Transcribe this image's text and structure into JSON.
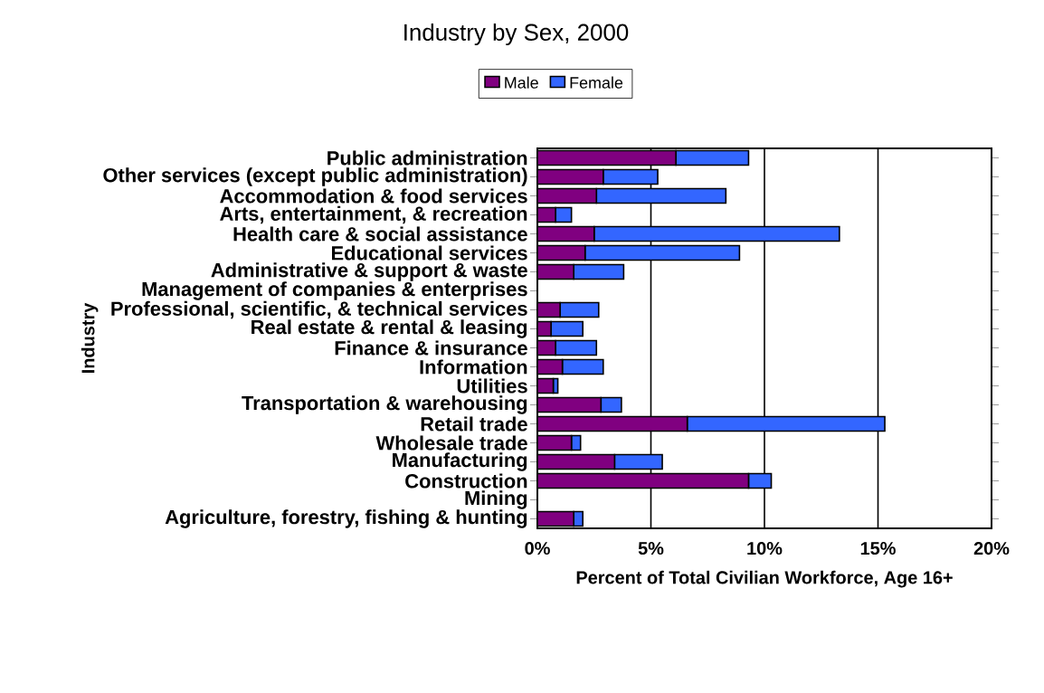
{
  "chart_data": {
    "type": "bar",
    "orientation": "horizontal",
    "stacked": true,
    "title": "Industry by Sex, 2000",
    "xlabel": "Percent of Total Civilian Workforce, Age 16+",
    "ylabel": "Industry",
    "categories": [
      "Public administration",
      "Other services (except public administration)",
      "Accommodation & food services",
      "Arts, entertainment, & recreation",
      "Health care & social assistance",
      "Educational services",
      "Administrative & support & waste",
      "Management of companies & enterprises",
      "Professional, scientific, & technical services",
      "Real estate & rental & leasing",
      "Finance & insurance",
      "Information",
      "Utilities",
      "Transportation & warehousing",
      "Retail trade",
      "Wholesale trade",
      "Manufacturing",
      "Construction",
      "Mining",
      "Agriculture, forestry, fishing & hunting"
    ],
    "series": [
      {
        "name": "Male",
        "color": "#800080",
        "values": [
          6.1,
          2.9,
          2.6,
          0.8,
          2.5,
          2.1,
          1.6,
          0,
          1.0,
          0.6,
          0.8,
          1.1,
          0.7,
          2.8,
          6.6,
          1.5,
          3.4,
          9.3,
          0,
          1.6
        ]
      },
      {
        "name": "Female",
        "color": "#3366ff",
        "values": [
          3.2,
          2.4,
          5.7,
          0.7,
          10.8,
          6.8,
          2.2,
          0,
          1.7,
          1.4,
          1.8,
          1.8,
          0.2,
          0.9,
          8.7,
          0.4,
          2.1,
          1.0,
          0,
          0.4
        ]
      }
    ],
    "xlim": [
      0,
      20
    ],
    "xticks": [
      {
        "value": 0,
        "label": "0%"
      },
      {
        "value": 5,
        "label": "5%"
      },
      {
        "value": 10,
        "label": "10%"
      },
      {
        "value": 15,
        "label": "15%"
      },
      {
        "value": 20,
        "label": "20%"
      }
    ],
    "grid": "x",
    "legend": "top"
  }
}
